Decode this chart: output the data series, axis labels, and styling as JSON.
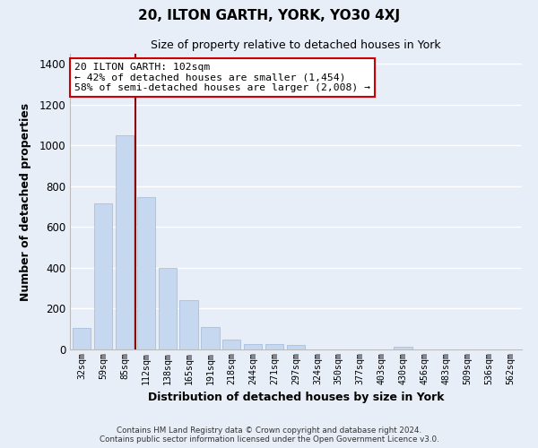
{
  "title": "20, ILTON GARTH, YORK, YO30 4XJ",
  "subtitle": "Size of property relative to detached houses in York",
  "xlabel": "Distribution of detached houses by size in York",
  "ylabel": "Number of detached properties",
  "bar_color": "#c5d8f0",
  "bar_edge_color": "#a0b8d8",
  "vline_color": "#8b0000",
  "vline_x_index": 3,
  "categories": [
    "32sqm",
    "59sqm",
    "85sqm",
    "112sqm",
    "138sqm",
    "165sqm",
    "191sqm",
    "218sqm",
    "244sqm",
    "271sqm",
    "297sqm",
    "324sqm",
    "350sqm",
    "377sqm",
    "403sqm",
    "430sqm",
    "456sqm",
    "483sqm",
    "509sqm",
    "536sqm",
    "562sqm"
  ],
  "values": [
    107,
    717,
    1048,
    748,
    400,
    243,
    110,
    48,
    28,
    28,
    22,
    0,
    0,
    0,
    0,
    14,
    0,
    0,
    0,
    0,
    0
  ],
  "ylim": [
    0,
    1450
  ],
  "yticks": [
    0,
    200,
    400,
    600,
    800,
    1000,
    1200,
    1400
  ],
  "annotation_title": "20 ILTON GARTH: 102sqm",
  "annotation_line1": "← 42% of detached houses are smaller (1,454)",
  "annotation_line2": "58% of semi-detached houses are larger (2,008) →",
  "annotation_box_facecolor": "#ffffff",
  "annotation_box_edgecolor": "#cc0000",
  "footnote1": "Contains HM Land Registry data © Crown copyright and database right 2024.",
  "footnote2": "Contains public sector information licensed under the Open Government Licence v3.0.",
  "background_color": "#e8eef8",
  "plot_bg_color": "#e8eef8",
  "grid_color": "#ffffff"
}
